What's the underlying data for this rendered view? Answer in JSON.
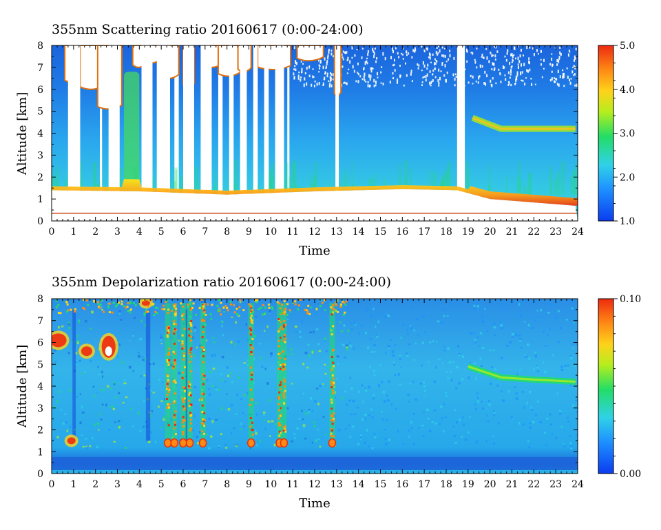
{
  "chart_data": [
    {
      "type": "heatmap",
      "title": "355nm Scattering ratio  20160617 (0:00-24:00)",
      "xlabel": "Time",
      "ylabel": "Altitude [km]",
      "xlim": [
        0,
        24
      ],
      "ylim": [
        0,
        8
      ],
      "x_ticks": [
        "0",
        "1",
        "2",
        "3",
        "4",
        "5",
        "6",
        "7",
        "8",
        "9",
        "10",
        "11",
        "12",
        "13",
        "14",
        "15",
        "16",
        "17",
        "18",
        "19",
        "20",
        "21",
        "22",
        "23",
        "24"
      ],
      "y_ticks": [
        "0",
        "1",
        "2",
        "3",
        "4",
        "5",
        "6",
        "7",
        "8"
      ],
      "colorbar": {
        "range": [
          1.0,
          5.0
        ],
        "tick_labels": [
          "1.0",
          "2.0",
          "3.0",
          "4.0",
          "5.0"
        ],
        "colormap": "rainbow"
      },
      "features": {
        "boundary_layer_top_km": [
          {
            "t": 0,
            "h": 1.4
          },
          {
            "t": 4,
            "h": 1.35
          },
          {
            "t": 8,
            "h": 1.2
          },
          {
            "t": 12,
            "h": 1.35
          },
          {
            "t": 16,
            "h": 1.45
          },
          {
            "t": 18.5,
            "h": 1.4
          },
          {
            "t": 20,
            "h": 1.0
          },
          {
            "t": 23.8,
            "h": 0.7
          }
        ],
        "elevated_layer_km": [
          {
            "t": 19.2,
            "h": 4.7
          },
          {
            "t": 20.5,
            "h": 4.2
          },
          {
            "t": 22,
            "h": 4.2
          },
          {
            "t": 24,
            "h": 4.2
          }
        ],
        "reference_line_km": 0.35
      }
    },
    {
      "type": "heatmap",
      "title": "355nm Depolarization ratio  20160617 (0:00-24:00)",
      "xlabel": "Time",
      "ylabel": "Altitude [km]",
      "xlim": [
        0,
        24
      ],
      "ylim": [
        0,
        8
      ],
      "x_ticks": [
        "0",
        "1",
        "2",
        "3",
        "4",
        "5",
        "6",
        "7",
        "8",
        "9",
        "10",
        "11",
        "12",
        "13",
        "14",
        "15",
        "16",
        "17",
        "18",
        "19",
        "20",
        "21",
        "22",
        "23",
        "24"
      ],
      "y_ticks": [
        "0",
        "1",
        "2",
        "3",
        "4",
        "5",
        "6",
        "7",
        "8"
      ],
      "colorbar": {
        "range": [
          0.0,
          0.1
        ],
        "tick_labels": [
          "0.00",
          "0.10"
        ],
        "colormap": "rainbow"
      },
      "features": {
        "high_depol_columns_h": [
          5.3,
          5.6,
          6.0,
          6.3,
          6.9,
          9.1,
          10.4,
          10.6,
          12.8
        ],
        "elevated_layer_km": [
          {
            "t": 19,
            "h": 4.9
          },
          {
            "t": 20.5,
            "h": 4.4
          },
          {
            "t": 22,
            "h": 4.3
          },
          {
            "t": 24,
            "h": 4.2
          }
        ]
      }
    }
  ]
}
